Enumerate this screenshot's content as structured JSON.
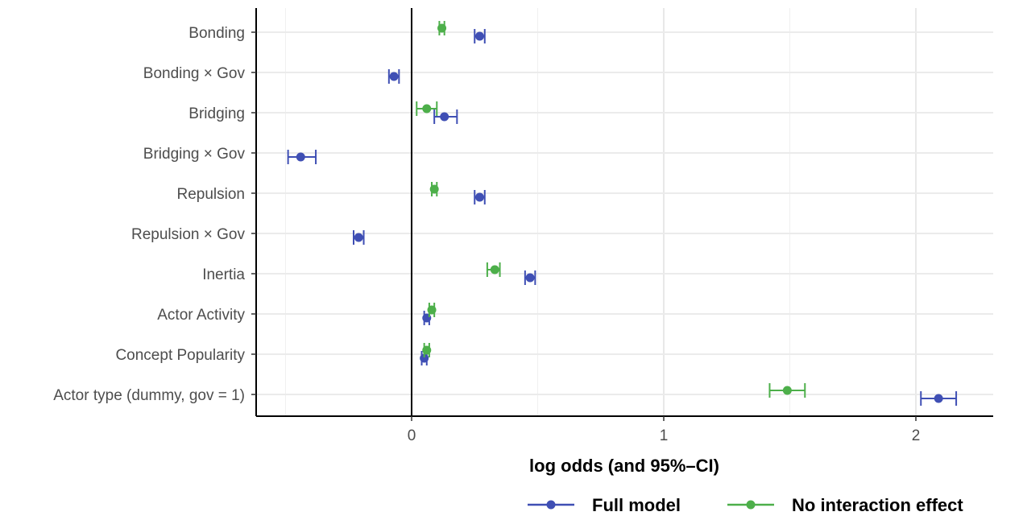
{
  "chart_data": {
    "type": "scatter",
    "subtype": "dot-and-whisker",
    "title": "",
    "xlabel": "log odds (and 95%–CI)",
    "ylabel": "",
    "xlim": [
      -0.62,
      2.3
    ],
    "xticks": [
      0,
      1,
      2
    ],
    "xtick_labels": [
      "0",
      "1",
      "2"
    ],
    "grid": true,
    "zero_line": true,
    "legend_position": "bottom",
    "categories": [
      "Bonding",
      "Bonding × Gov",
      "Bridging",
      "Bridging × Gov",
      "Repulsion",
      "Repulsion × Gov",
      "Inertia",
      "Actor Activity",
      "Concept Popularity",
      "Actor type (dummy, gov = 1)"
    ],
    "series": [
      {
        "name": "Full model",
        "color": "#3F4FB4",
        "points": [
          {
            "category": "Bonding",
            "estimate": 0.27,
            "lower": 0.25,
            "upper": 0.29
          },
          {
            "category": "Bonding × Gov",
            "estimate": -0.07,
            "lower": -0.09,
            "upper": -0.05
          },
          {
            "category": "Bridging",
            "estimate": 0.13,
            "lower": 0.09,
            "upper": 0.18
          },
          {
            "category": "Bridging × Gov",
            "estimate": -0.44,
            "lower": -0.49,
            "upper": -0.38
          },
          {
            "category": "Repulsion",
            "estimate": 0.27,
            "lower": 0.25,
            "upper": 0.29
          },
          {
            "category": "Repulsion × Gov",
            "estimate": -0.21,
            "lower": -0.23,
            "upper": -0.19
          },
          {
            "category": "Inertia",
            "estimate": 0.47,
            "lower": 0.45,
            "upper": 0.49
          },
          {
            "category": "Actor Activity",
            "estimate": 0.06,
            "lower": 0.05,
            "upper": 0.07
          },
          {
            "category": "Concept Popularity",
            "estimate": 0.05,
            "lower": 0.04,
            "upper": 0.06
          },
          {
            "category": "Actor type (dummy, gov = 1)",
            "estimate": 2.09,
            "lower": 2.02,
            "upper": 2.16
          }
        ]
      },
      {
        "name": "No interaction effect",
        "color": "#4DAF4A",
        "points": [
          {
            "category": "Bonding",
            "estimate": 0.12,
            "lower": 0.11,
            "upper": 0.13
          },
          {
            "category": "Bridging",
            "estimate": 0.06,
            "lower": 0.02,
            "upper": 0.1
          },
          {
            "category": "Repulsion",
            "estimate": 0.09,
            "lower": 0.08,
            "upper": 0.1
          },
          {
            "category": "Inertia",
            "estimate": 0.33,
            "lower": 0.3,
            "upper": 0.35
          },
          {
            "category": "Actor Activity",
            "estimate": 0.08,
            "lower": 0.07,
            "upper": 0.09
          },
          {
            "category": "Concept Popularity",
            "estimate": 0.06,
            "lower": 0.05,
            "upper": 0.07
          },
          {
            "category": "Actor type (dummy, gov = 1)",
            "estimate": 1.49,
            "lower": 1.42,
            "upper": 1.56
          }
        ]
      }
    ]
  }
}
